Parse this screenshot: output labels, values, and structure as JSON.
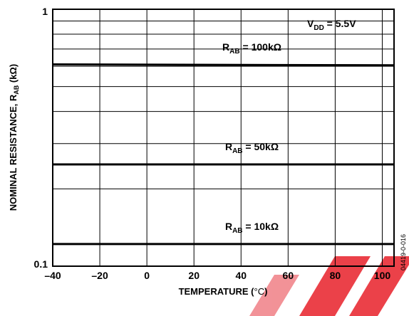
{
  "chart_data": {
    "type": "line",
    "title": "",
    "xlabel": "TEMPERATURE (°C)",
    "ylabel": "NOMINAL RESISTANCE, R_AB (kΩ)",
    "ylabel_parts": {
      "main": "NOMINAL RESISTANCE, R",
      "sub": "AB",
      "unit": " (kΩ)"
    },
    "xlabel_parts": {
      "main": "TEMPERATURE (",
      "unit": "°C",
      "close": ")"
    },
    "xlim": [
      -40,
      105
    ],
    "ylim": [
      0.1,
      1
    ],
    "yscale": "log",
    "grid": true,
    "x_ticks": [
      -40,
      -20,
      0,
      20,
      40,
      60,
      80,
      100
    ],
    "x_tick_labels": [
      "–40",
      "–20",
      "0",
      "20",
      "40",
      "60",
      "80",
      "100"
    ],
    "y_ticks": [
      0.1,
      1
    ],
    "y_tick_labels": [
      "0.1",
      "1"
    ],
    "annotation": {
      "main": "V",
      "sub": "DD",
      "rest": " = 5.5V"
    },
    "series": [
      {
        "name": "R_AB = 100kΩ",
        "label_main": "R",
        "label_sub": "AB",
        "label_rest": " = 100kΩ",
        "x": [
          -40,
          105
        ],
        "y": [
          0.61,
          0.605
        ]
      },
      {
        "name": "R_AB = 50kΩ",
        "label_main": "R",
        "label_sub": "AB",
        "label_rest": " = 50kΩ",
        "x": [
          -40,
          105
        ],
        "y": [
          0.249,
          0.249
        ]
      },
      {
        "name": "R_AB = 10kΩ",
        "label_main": "R",
        "label_sub": "AB",
        "label_rest": " = 10kΩ",
        "x": [
          -40,
          105
        ],
        "y": [
          0.122,
          0.122
        ]
      }
    ],
    "colors": {
      "line": "#000000",
      "grid": "#000000",
      "watermark": "#e8202a"
    }
  },
  "figure_code": "04419-0-016"
}
